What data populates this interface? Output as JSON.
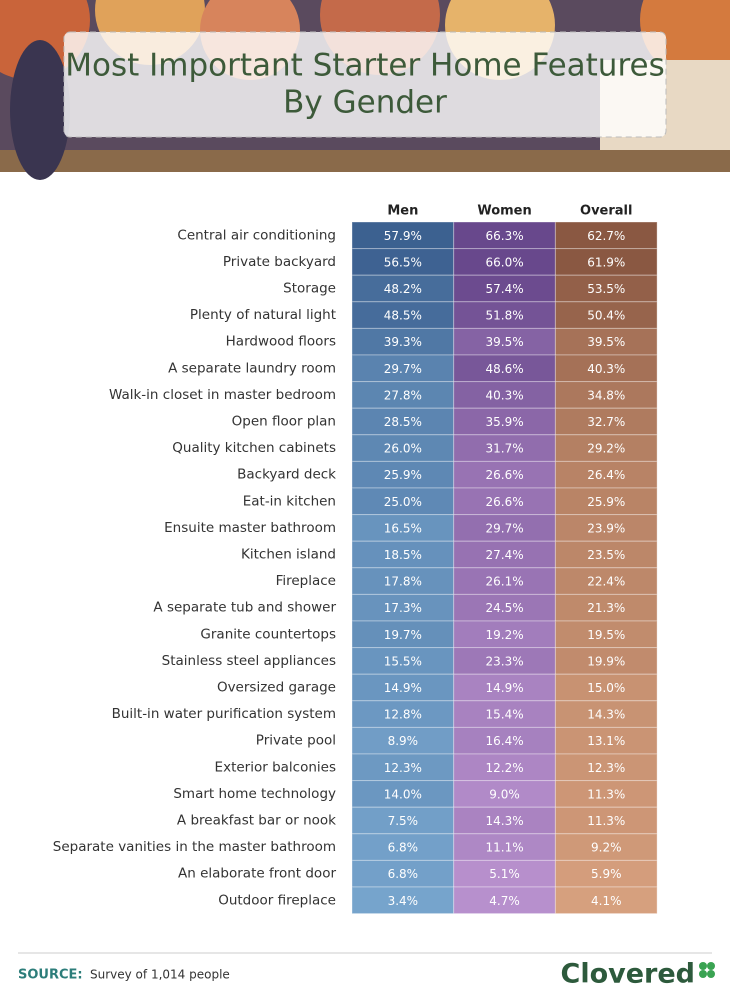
{
  "header": {
    "title_lines": [
      "Most Important Starter Home Features",
      "By Gender"
    ]
  },
  "table": {
    "columns": [
      "Men",
      "Women",
      "Overall"
    ],
    "rows": [
      {
        "label": "Central air conditioning",
        "values": [
          "57.9%",
          "66.3%",
          "62.7%"
        ]
      },
      {
        "label": "Private backyard",
        "values": [
          "56.5%",
          "66.0%",
          "61.9%"
        ]
      },
      {
        "label": "Storage",
        "values": [
          "48.2%",
          "57.4%",
          "53.5%"
        ]
      },
      {
        "label": "Plenty of natural light",
        "values": [
          "48.5%",
          "51.8%",
          "50.4%"
        ]
      },
      {
        "label": "Hardwood floors",
        "values": [
          "39.3%",
          "39.5%",
          "39.5%"
        ]
      },
      {
        "label": "A separate laundry room",
        "values": [
          "29.7%",
          "48.6%",
          "40.3%"
        ]
      },
      {
        "label": "Walk-in closet in master bedroom",
        "values": [
          "27.8%",
          "40.3%",
          "34.8%"
        ]
      },
      {
        "label": "Open floor plan",
        "values": [
          "28.5%",
          "35.9%",
          "32.7%"
        ]
      },
      {
        "label": "Quality kitchen cabinets",
        "values": [
          "26.0%",
          "31.7%",
          "29.2%"
        ]
      },
      {
        "label": "Backyard deck",
        "values": [
          "25.9%",
          "26.6%",
          "26.4%"
        ]
      },
      {
        "label": "Eat-in kitchen",
        "values": [
          "25.0%",
          "26.6%",
          "25.9%"
        ]
      },
      {
        "label": "Ensuite master bathroom",
        "values": [
          "16.5%",
          "29.7%",
          "23.9%"
        ]
      },
      {
        "label": "Kitchen island",
        "values": [
          "18.5%",
          "27.4%",
          "23.5%"
        ]
      },
      {
        "label": "Fireplace",
        "values": [
          "17.8%",
          "26.1%",
          "22.4%"
        ]
      },
      {
        "label": "A separate tub and shower",
        "values": [
          "17.3%",
          "24.5%",
          "21.3%"
        ]
      },
      {
        "label": "Granite countertops",
        "values": [
          "19.7%",
          "19.2%",
          "19.5%"
        ]
      },
      {
        "label": "Stainless steel appliances",
        "values": [
          "15.5%",
          "23.3%",
          "19.9%"
        ]
      },
      {
        "label": "Oversized garage",
        "values": [
          "14.9%",
          "14.9%",
          "15.0%"
        ]
      },
      {
        "label": "Built-in water purification system",
        "values": [
          "12.8%",
          "15.4%",
          "14.3%"
        ]
      },
      {
        "label": "Private pool",
        "values": [
          "8.9%",
          "16.4%",
          "13.1%"
        ]
      },
      {
        "label": "Exterior balconies",
        "values": [
          "12.3%",
          "12.2%",
          "12.3%"
        ]
      },
      {
        "label": "Smart home technology",
        "values": [
          "14.0%",
          "9.0%",
          "11.3%"
        ]
      },
      {
        "label": "A breakfast bar or nook",
        "values": [
          "7.5%",
          "14.3%",
          "11.3%"
        ]
      },
      {
        "label": "Separate vanities in the master bathroom",
        "values": [
          "6.8%",
          "11.1%",
          "9.2%"
        ]
      },
      {
        "label": "An elaborate front door",
        "values": [
          "6.8%",
          "5.1%",
          "5.9%"
        ]
      },
      {
        "label": "Outdoor fireplace",
        "values": [
          "3.4%",
          "4.7%",
          "4.1%"
        ]
      }
    ]
  },
  "footer": {
    "source_label": "SOURCE:",
    "source_text": "Survey of 1,014 people",
    "brand": "Clovered"
  }
}
